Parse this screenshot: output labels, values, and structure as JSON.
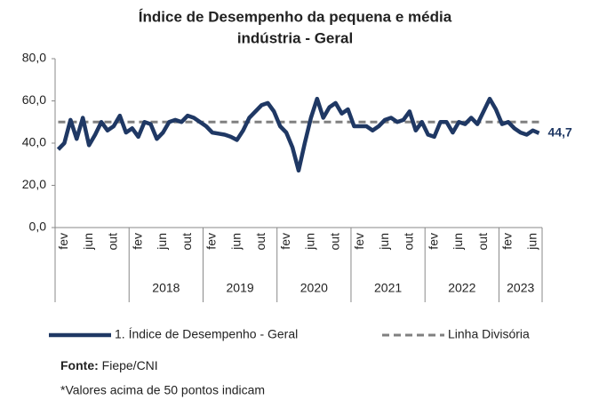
{
  "chart_data": {
    "type": "line",
    "title": [
      "Índice de Desempenho da pequena e média",
      "indústria - Geral"
    ],
    "categories": [
      null,
      "fev",
      null,
      null,
      null,
      "jun",
      null,
      null,
      null,
      "out",
      null,
      null,
      null,
      "fev",
      null,
      null,
      null,
      "jun",
      null,
      null,
      null,
      "out",
      null,
      null,
      null,
      "fev",
      null,
      null,
      null,
      "jun",
      null,
      null,
      null,
      "out",
      null,
      null,
      null,
      "fev",
      null,
      null,
      null,
      "jun",
      null,
      null,
      null,
      "out",
      null,
      null,
      null,
      "fev",
      null,
      null,
      null,
      "jun",
      null,
      null,
      null,
      "out",
      null,
      null,
      null,
      "fev",
      null,
      null,
      null,
      "jun",
      null,
      null,
      null,
      "out",
      null,
      null,
      null,
      "fev",
      null,
      null,
      null,
      "jun",
      null
    ],
    "group_labels": [
      null,
      "2018",
      "2019",
      "2020",
      "2021",
      "2022",
      "2023"
    ],
    "series": [
      {
        "name": "1. Índice de Desempenho - Geral",
        "color": "#1f3864",
        "values": [
          37,
          40,
          51,
          42,
          52,
          39,
          44,
          50,
          46,
          48,
          53,
          45,
          47,
          43,
          50,
          49,
          42,
          45,
          50,
          51,
          50,
          53,
          52,
          50,
          48,
          45,
          44.5,
          44,
          43,
          41.5,
          46,
          52,
          55,
          58,
          59,
          55,
          48,
          45,
          38,
          27,
          40,
          52,
          61,
          52,
          57,
          59,
          54,
          56,
          48,
          48,
          48,
          46,
          48,
          51,
          52,
          50,
          51,
          55,
          46,
          50,
          44,
          43,
          50,
          50,
          45,
          50,
          49,
          52,
          49,
          55,
          61,
          56,
          49,
          50,
          47,
          45,
          44,
          46,
          44.7
        ],
        "value_labels": [
          null,
          null,
          null,
          null,
          null,
          null,
          null,
          null,
          null,
          null,
          null,
          null,
          null,
          null,
          null,
          null,
          null,
          null,
          null,
          null,
          null,
          null,
          null,
          null,
          null,
          null,
          null,
          null,
          null,
          null,
          null,
          null,
          null,
          null,
          null,
          null,
          null,
          null,
          null,
          null,
          null,
          null,
          null,
          null,
          null,
          null,
          null,
          null,
          null,
          null,
          null,
          null,
          null,
          null,
          null,
          null,
          null,
          null,
          null,
          null,
          null,
          null,
          null,
          null,
          null,
          null,
          null,
          null,
          null,
          null,
          null,
          null,
          null,
          null,
          null,
          null,
          null,
          null,
          "44,7"
        ]
      },
      {
        "name": "Linha Divisória",
        "color": "#808080",
        "dashed": true,
        "values": [
          50,
          50,
          50,
          50,
          50,
          50,
          50,
          50,
          50,
          50,
          50,
          50,
          50,
          50,
          50,
          50,
          50,
          50,
          50,
          50,
          50,
          50,
          50,
          50,
          50,
          50,
          50,
          50,
          50,
          50,
          50,
          50,
          50,
          50,
          50,
          50,
          50,
          50,
          50,
          50,
          50,
          50,
          50,
          50,
          50,
          50,
          50,
          50,
          50,
          50,
          50,
          50,
          50,
          50,
          50,
          50,
          50,
          50,
          50,
          50,
          50,
          50,
          50,
          50,
          50,
          50,
          50,
          50,
          50,
          50,
          50,
          50,
          50,
          50,
          50,
          50,
          50,
          50,
          50
        ]
      }
    ],
    "ylim": [
      0,
      80
    ],
    "yticks": [
      {
        "value": 0,
        "label": "0,0"
      },
      {
        "value": 20,
        "label": "20,0"
      },
      {
        "value": 40,
        "label": "40,0"
      },
      {
        "value": 60,
        "label": "60,0"
      },
      {
        "value": 80,
        "label": "80,0"
      }
    ],
    "grid": false
  },
  "footer": {
    "source_label": "Fonte:",
    "source": " Fiepe/CNI",
    "note": "*Valores acima de 50 pontos indicam"
  }
}
